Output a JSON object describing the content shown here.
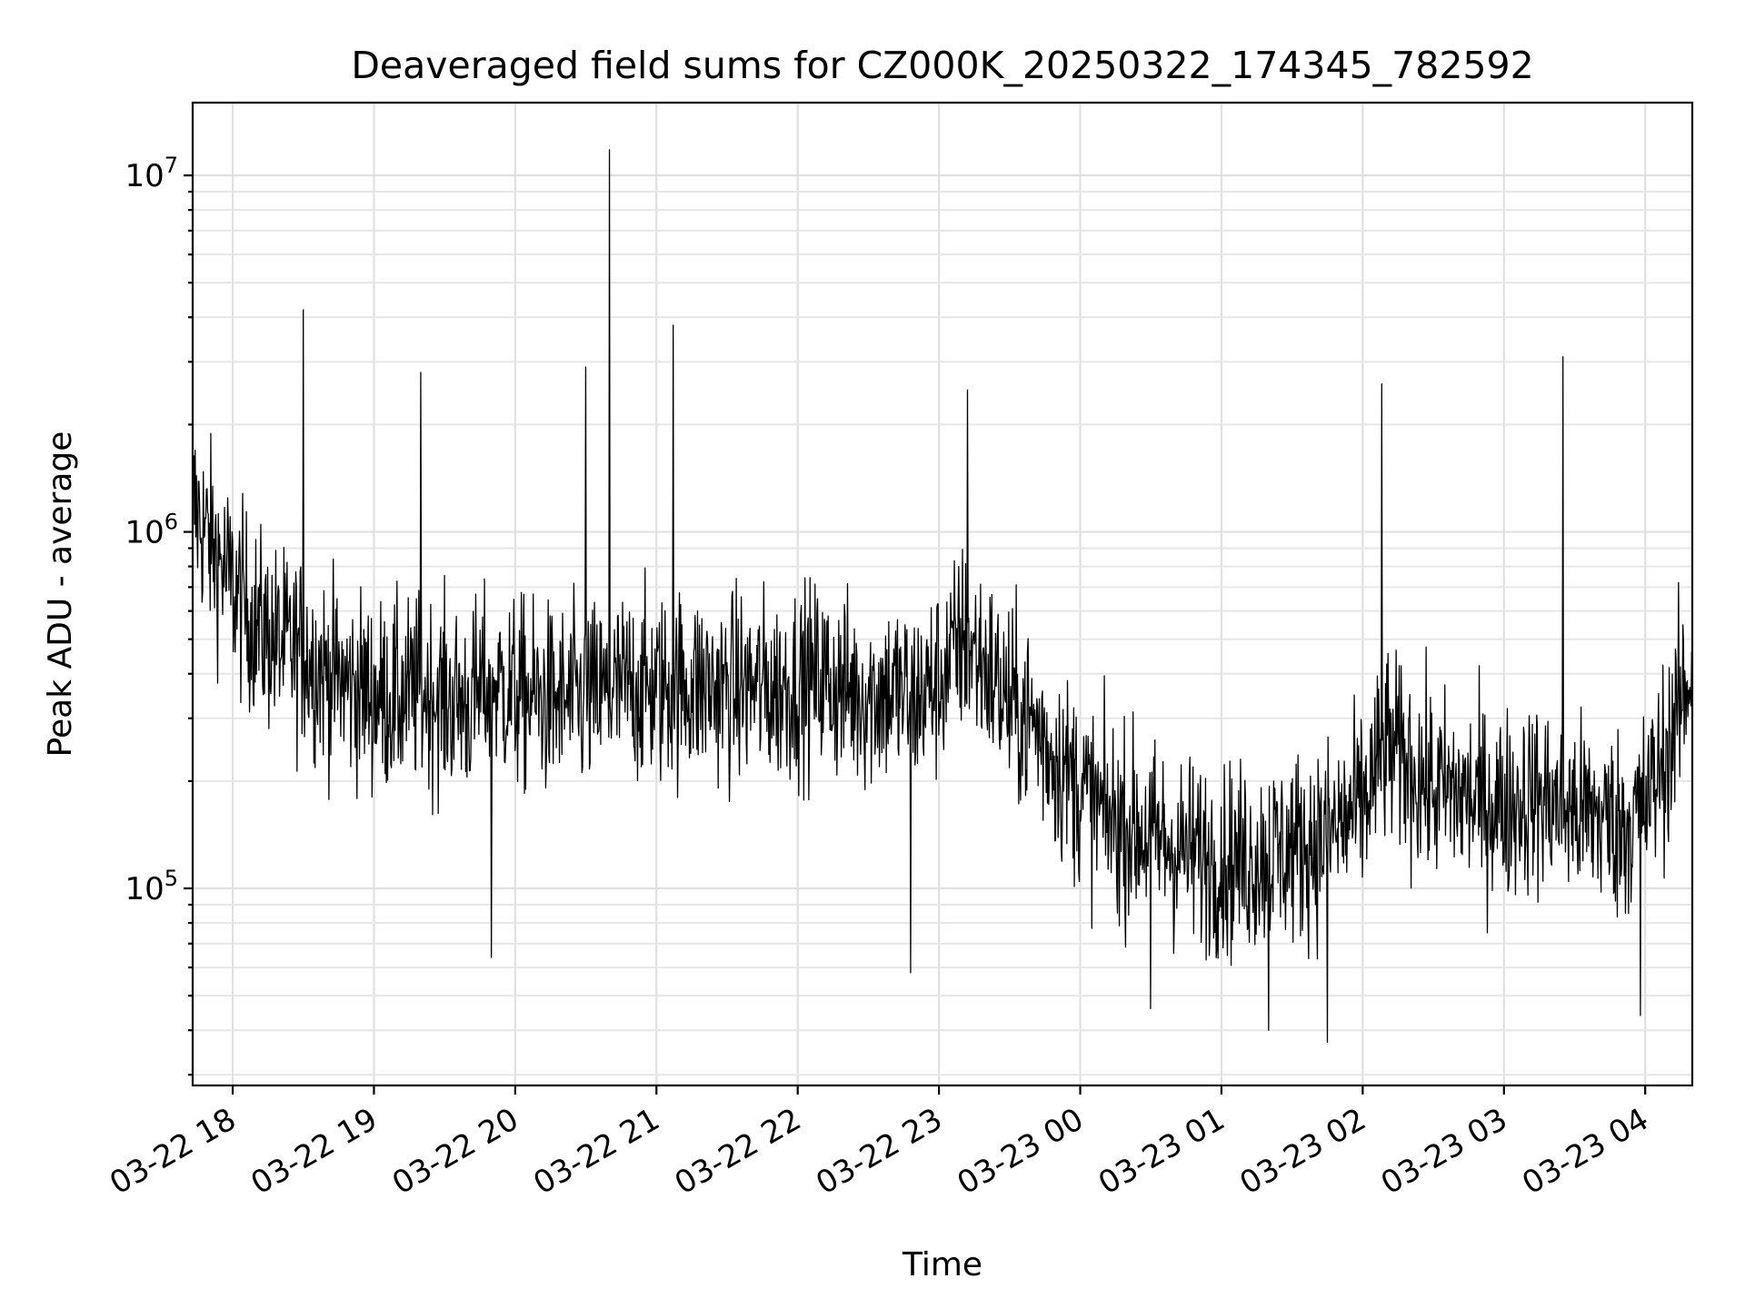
{
  "chart_data": {
    "type": "line",
    "title": "Deaveraged field sums for CZ000K_20250322_174345_782592",
    "xlabel": "Time",
    "ylabel": "Peak ADU - average",
    "yscale": "log",
    "ylim": [
      28000,
      16000000
    ],
    "xlim": [
      "2025-03-22 17:43",
      "2025-03-23 04:20"
    ],
    "grid": true,
    "x_ticks": [
      "03-22 18",
      "03-22 19",
      "03-22 20",
      "03-22 21",
      "03-22 22",
      "03-22 23",
      "03-23 00",
      "03-23 01",
      "03-23 02",
      "03-23 03",
      "03-23 04"
    ],
    "y_ticks": [
      {
        "base": "10",
        "exp": "5",
        "value": 100000
      },
      {
        "base": "10",
        "exp": "6",
        "value": 1000000
      },
      {
        "base": "10",
        "exp": "7",
        "value": 10000000
      }
    ],
    "series": [
      {
        "color": "#000000",
        "x": [
          "2025-03-22 17:43",
          "2025-03-22 17:50",
          "2025-03-22 18:00",
          "2025-03-22 18:10",
          "2025-03-22 18:20",
          "2025-03-22 18:30",
          "2025-03-22 18:40",
          "2025-03-22 18:50",
          "2025-03-22 19:00",
          "2025-03-22 19:10",
          "2025-03-22 19:20",
          "2025-03-22 19:30",
          "2025-03-22 19:40",
          "2025-03-22 19:50",
          "2025-03-22 20:00",
          "2025-03-22 20:10",
          "2025-03-22 20:20",
          "2025-03-22 20:30",
          "2025-03-22 20:40",
          "2025-03-22 20:50",
          "2025-03-22 21:00",
          "2025-03-22 21:10",
          "2025-03-22 21:20",
          "2025-03-22 21:30",
          "2025-03-22 21:40",
          "2025-03-22 21:50",
          "2025-03-22 22:00",
          "2025-03-22 22:10",
          "2025-03-22 22:20",
          "2025-03-22 22:30",
          "2025-03-22 22:40",
          "2025-03-22 22:50",
          "2025-03-22 23:00",
          "2025-03-22 23:10",
          "2025-03-22 23:20",
          "2025-03-22 23:30",
          "2025-03-22 23:40",
          "2025-03-22 23:50",
          "2025-03-23 00:00",
          "2025-03-23 00:10",
          "2025-03-23 00:20",
          "2025-03-23 00:30",
          "2025-03-23 00:40",
          "2025-03-23 00:50",
          "2025-03-23 01:00",
          "2025-03-23 01:10",
          "2025-03-23 01:20",
          "2025-03-23 01:30",
          "2025-03-23 01:40",
          "2025-03-23 01:50",
          "2025-03-23 02:00",
          "2025-03-23 02:10",
          "2025-03-23 02:20",
          "2025-03-23 02:30",
          "2025-03-23 02:40",
          "2025-03-23 02:50",
          "2025-03-23 03:00",
          "2025-03-23 03:10",
          "2025-03-23 03:20",
          "2025-03-23 03:30",
          "2025-03-23 03:40",
          "2025-03-23 03:50",
          "2025-03-23 04:00",
          "2025-03-23 04:10",
          "2025-03-23 04:20"
        ],
        "y": [
          1200000,
          950000,
          700000,
          550000,
          480000,
          460000,
          400000,
          370000,
          350000,
          340000,
          360000,
          340000,
          330000,
          380000,
          350000,
          340000,
          330000,
          340000,
          350000,
          370000,
          360000,
          370000,
          370000,
          360000,
          370000,
          360000,
          380000,
          390000,
          360000,
          350000,
          360000,
          340000,
          380000,
          500000,
          420000,
          330000,
          290000,
          230000,
          190000,
          160000,
          150000,
          140000,
          130000,
          125000,
          120000,
          120000,
          125000,
          130000,
          135000,
          150000,
          170000,
          250000,
          220000,
          190000,
          185000,
          175000,
          170000,
          180000,
          175000,
          165000,
          160000,
          150000,
          170000,
          250000,
          420000
        ],
        "peaks": [
          {
            "x": "2025-03-22 18:30",
            "y": 4200000
          },
          {
            "x": "2025-03-22 19:20",
            "y": 2800000
          },
          {
            "x": "2025-03-22 20:30",
            "y": 2900000
          },
          {
            "x": "2025-03-22 20:40",
            "y": 11800000
          },
          {
            "x": "2025-03-22 21:07",
            "y": 3800000
          },
          {
            "x": "2025-03-22 23:12",
            "y": 2500000
          },
          {
            "x": "2025-03-23 02:08",
            "y": 2600000
          },
          {
            "x": "2025-03-23 03:25",
            "y": 3100000
          }
        ],
        "troughs": [
          {
            "x": "2025-03-22 19:50",
            "y": 64000
          },
          {
            "x": "2025-03-22 22:48",
            "y": 58000
          },
          {
            "x": "2025-03-23 00:30",
            "y": 46000
          },
          {
            "x": "2025-03-23 01:20",
            "y": 40000
          },
          {
            "x": "2025-03-23 01:45",
            "y": 37000
          },
          {
            "x": "2025-03-23 03:58",
            "y": 44000
          }
        ]
      }
    ]
  }
}
